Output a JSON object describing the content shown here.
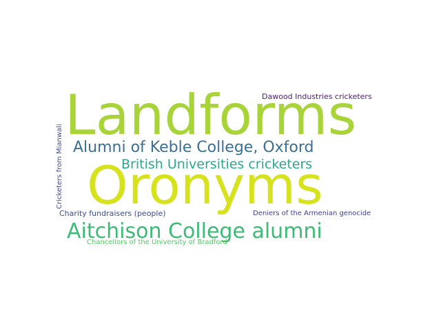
{
  "word_cloud": {
    "words": [
      {
        "text": "Landforms",
        "color": "#a8d43a"
      },
      {
        "text": "Oronyms",
        "color": "#d7e21f"
      },
      {
        "text": "Alumni of Keble College, Oxford",
        "color": "#3b6f92"
      },
      {
        "text": "British Universities cricketers",
        "color": "#2aa88c"
      },
      {
        "text": "Aitchison College alumni",
        "color": "#3dbb76"
      },
      {
        "text": "Dawood Industries cricketers",
        "color": "#4b1d6e"
      },
      {
        "text": "Cricketers from Mianwali",
        "color": "#3f4a8b"
      },
      {
        "text": "Charity fundraisers (people)",
        "color": "#3f4a8b"
      },
      {
        "text": "Deniers of the Armenian genocide",
        "color": "#3d3f86"
      },
      {
        "text": "Chancellors of the University of Bradford",
        "color": "#58c568"
      }
    ]
  }
}
